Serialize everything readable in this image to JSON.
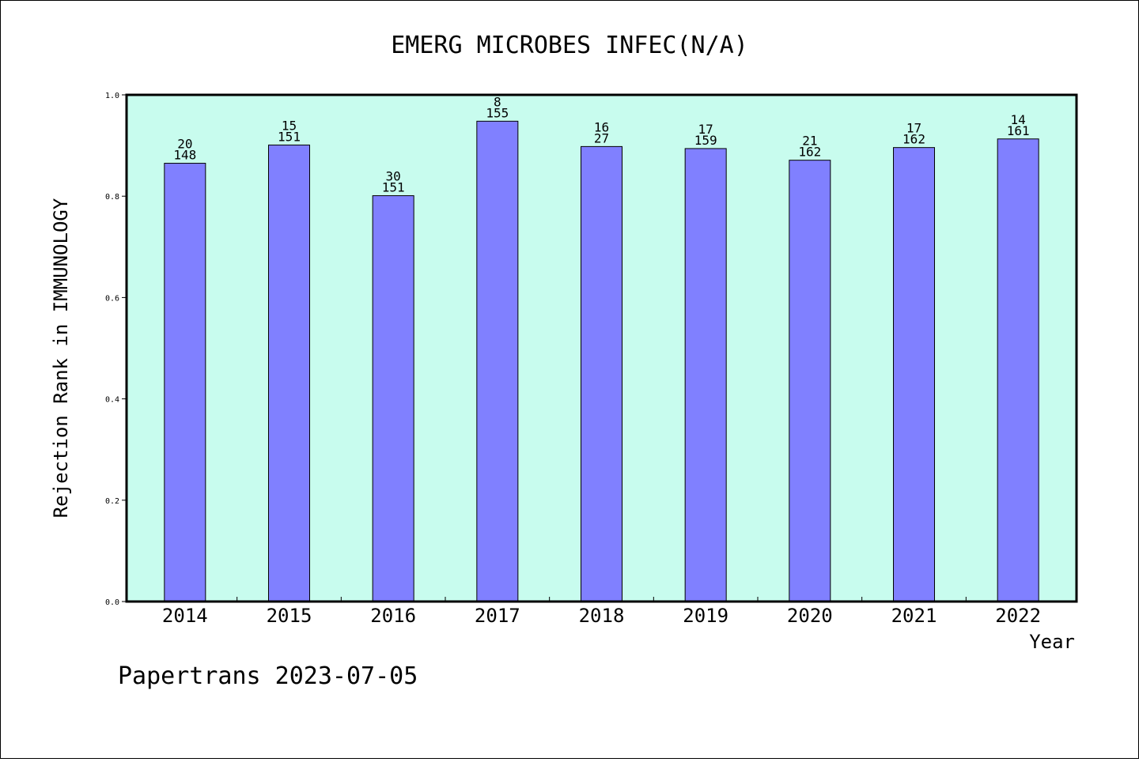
{
  "chart_data": {
    "type": "bar",
    "title": "EMERG MICROBES INFEC(N/A)",
    "xlabel": "Year",
    "ylabel": "Rejection Rank in IMMUNOLOGY",
    "ylim": [
      0,
      1
    ],
    "yticks": [
      "0.0",
      "0.2",
      "0.4",
      "0.6",
      "0.8",
      "1.0"
    ],
    "grid": false,
    "colors": {
      "bar": "#8080ff",
      "plot_background": "#c8fcee",
      "border": "#000000"
    },
    "categories": [
      "2014",
      "2015",
      "2016",
      "2017",
      "2018",
      "2019",
      "2020",
      "2021",
      "2022"
    ],
    "values": [
      0.865,
      0.901,
      0.801,
      0.948,
      0.898,
      0.894,
      0.871,
      0.896,
      0.913
    ],
    "labels_top": [
      "20",
      "15",
      "30",
      "8",
      "16",
      "17",
      "21",
      "17",
      "14"
    ],
    "labels_bottom": [
      "148",
      "151",
      "151",
      "155",
      "27",
      "159",
      "162",
      "162",
      "161"
    ]
  },
  "footer": "Papertrans 2023-07-05"
}
